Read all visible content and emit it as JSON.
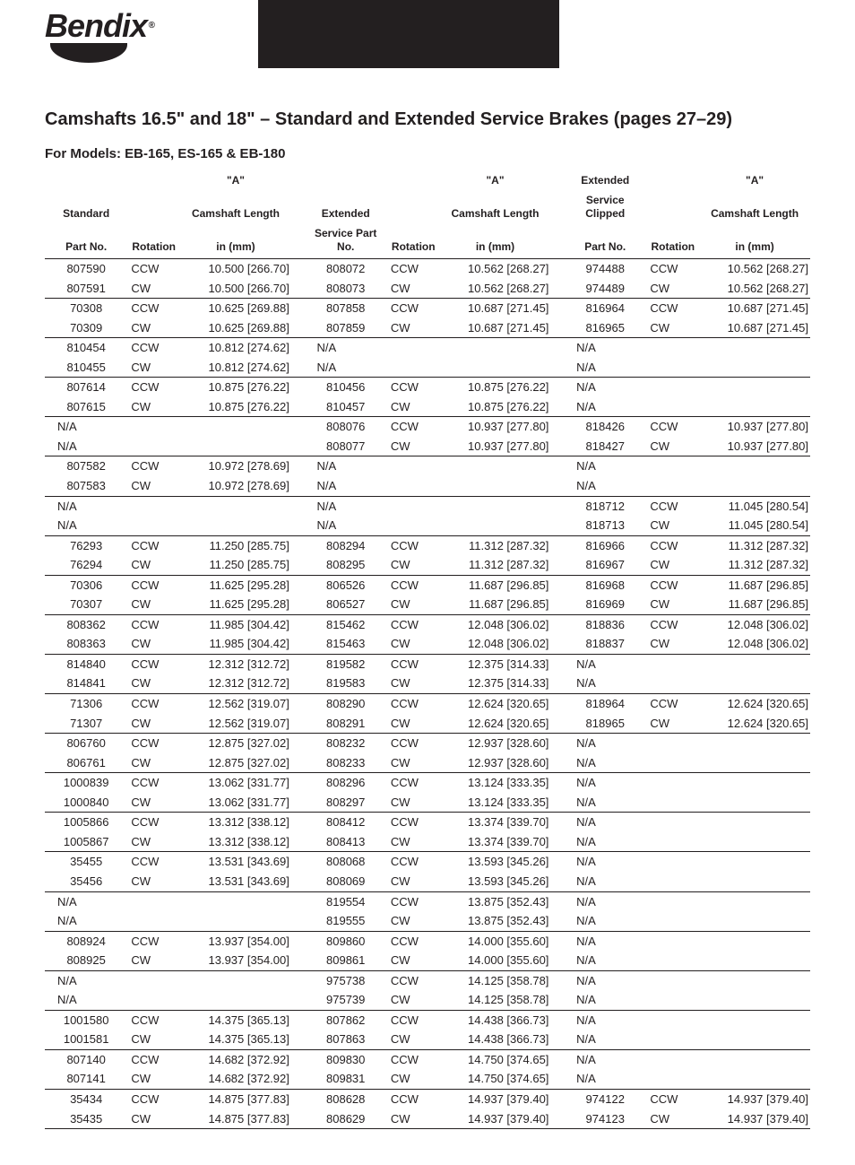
{
  "logo": {
    "text": "Bendix",
    "registered": "®"
  },
  "title": "Camshafts 16.5\" and 18\" – Standard and Extended Service Brakes (pages 27–29)",
  "subtitle": "For Models: EB-165, ES-165 & EB-180",
  "columns": {
    "std_part": [
      "Standard",
      "Part No."
    ],
    "rot": [
      "",
      "Rotation"
    ],
    "len": [
      "\"A\"",
      "Camshaft Length",
      "in (mm)"
    ],
    "ext_part": [
      "Extended",
      "Service Part No."
    ],
    "esc_part": [
      "Extended",
      "Service Clipped",
      "Part No."
    ]
  },
  "groups": [
    [
      {
        "s": "807590",
        "sr": "CCW",
        "sl": "10.500 [266.70]",
        "e": "808072",
        "er": "CCW",
        "el": "10.562 [268.27]",
        "c": "974488",
        "cr": "CCW",
        "cl": "10.562 [268.27]"
      },
      {
        "s": "807591",
        "sr": "CW",
        "sl": "10.500 [266.70]",
        "e": "808073",
        "er": "CW",
        "el": "10.562 [268.27]",
        "c": "974489",
        "cr": "CW",
        "cl": "10.562 [268.27]"
      }
    ],
    [
      {
        "s": "70308",
        "sr": "CCW",
        "sl": "10.625 [269.88]",
        "e": "807858",
        "er": "CCW",
        "el": "10.687 [271.45]",
        "c": "816964",
        "cr": "CCW",
        "cl": "10.687 [271.45]"
      },
      {
        "s": "70309",
        "sr": "CW",
        "sl": "10.625 [269.88]",
        "e": "807859",
        "er": "CW",
        "el": "10.687 [271.45]",
        "c": "816965",
        "cr": "CW",
        "cl": "10.687 [271.45]"
      }
    ],
    [
      {
        "s": "810454",
        "sr": "CCW",
        "sl": "10.812 [274.62]",
        "e": "N/A",
        "er": "",
        "el": "",
        "c": "N/A",
        "cr": "",
        "cl": ""
      },
      {
        "s": "810455",
        "sr": "CW",
        "sl": "10.812 [274.62]",
        "e": "N/A",
        "er": "",
        "el": "",
        "c": "N/A",
        "cr": "",
        "cl": ""
      }
    ],
    [
      {
        "s": "807614",
        "sr": "CCW",
        "sl": "10.875 [276.22]",
        "e": "810456",
        "er": "CCW",
        "el": "10.875 [276.22]",
        "c": "N/A",
        "cr": "",
        "cl": ""
      },
      {
        "s": "807615",
        "sr": "CW",
        "sl": "10.875 [276.22]",
        "e": "810457",
        "er": "CW",
        "el": "10.875 [276.22]",
        "c": "N/A",
        "cr": "",
        "cl": ""
      }
    ],
    [
      {
        "s": "N/A",
        "sr": "",
        "sl": "",
        "e": "808076",
        "er": "CCW",
        "el": "10.937 [277.80]",
        "c": "818426",
        "cr": "CCW",
        "cl": "10.937 [277.80]"
      },
      {
        "s": "N/A",
        "sr": "",
        "sl": "",
        "e": "808077",
        "er": "CW",
        "el": "10.937 [277.80]",
        "c": "818427",
        "cr": "CW",
        "cl": "10.937 [277.80]"
      }
    ],
    [
      {
        "s": "807582",
        "sr": "CCW",
        "sl": "10.972 [278.69]",
        "e": "N/A",
        "er": "",
        "el": "",
        "c": "N/A",
        "cr": "",
        "cl": ""
      },
      {
        "s": "807583",
        "sr": "CW",
        "sl": "10.972 [278.69]",
        "e": "N/A",
        "er": "",
        "el": "",
        "c": "N/A",
        "cr": "",
        "cl": ""
      }
    ],
    [
      {
        "s": "N/A",
        "sr": "",
        "sl": "",
        "e": "N/A",
        "er": "",
        "el": "",
        "c": "818712",
        "cr": "CCW",
        "cl": "11.045 [280.54]"
      },
      {
        "s": "N/A",
        "sr": "",
        "sl": "",
        "e": "N/A",
        "er": "",
        "el": "",
        "c": "818713",
        "cr": "CW",
        "cl": "11.045 [280.54]"
      }
    ],
    [
      {
        "s": "76293",
        "sr": "CCW",
        "sl": "11.250 [285.75]",
        "e": "808294",
        "er": "CCW",
        "el": "11.312 [287.32]",
        "c": "816966",
        "cr": "CCW",
        "cl": "11.312 [287.32]"
      },
      {
        "s": "76294",
        "sr": "CW",
        "sl": "11.250 [285.75]",
        "e": "808295",
        "er": "CW",
        "el": "11.312 [287.32]",
        "c": "816967",
        "cr": "CW",
        "cl": "11.312 [287.32]"
      }
    ],
    [
      {
        "s": "70306",
        "sr": "CCW",
        "sl": "11.625 [295.28]",
        "e": "806526",
        "er": "CCW",
        "el": "11.687 [296.85]",
        "c": "816968",
        "cr": "CCW",
        "cl": "11.687 [296.85]"
      },
      {
        "s": "70307",
        "sr": "CW",
        "sl": "11.625 [295.28]",
        "e": "806527",
        "er": "CW",
        "el": "11.687 [296.85]",
        "c": "816969",
        "cr": "CW",
        "cl": "11.687 [296.85]"
      }
    ],
    [
      {
        "s": "808362",
        "sr": "CCW",
        "sl": "11.985 [304.42]",
        "e": "815462",
        "er": "CCW",
        "el": "12.048 [306.02]",
        "c": "818836",
        "cr": "CCW",
        "cl": "12.048 [306.02]"
      },
      {
        "s": "808363",
        "sr": "CW",
        "sl": "11.985 [304.42]",
        "e": "815463",
        "er": "CW",
        "el": "12.048 [306.02]",
        "c": "818837",
        "cr": "CW",
        "cl": "12.048 [306.02]"
      }
    ],
    [
      {
        "s": "814840",
        "sr": "CCW",
        "sl": "12.312 [312.72]",
        "e": "819582",
        "er": "CCW",
        "el": "12.375 [314.33]",
        "c": "N/A",
        "cr": "",
        "cl": ""
      },
      {
        "s": "814841",
        "sr": "CW",
        "sl": "12.312 [312.72]",
        "e": "819583",
        "er": "CW",
        "el": "12.375 [314.33]",
        "c": "N/A",
        "cr": "",
        "cl": ""
      }
    ],
    [
      {
        "s": "71306",
        "sr": "CCW",
        "sl": "12.562 [319.07]",
        "e": "808290",
        "er": "CCW",
        "el": "12.624 [320.65]",
        "c": "818964",
        "cr": "CCW",
        "cl": "12.624 [320.65]"
      },
      {
        "s": "71307",
        "sr": "CW",
        "sl": "12.562 [319.07]",
        "e": "808291",
        "er": "CW",
        "el": "12.624 [320.65]",
        "c": "818965",
        "cr": "CW",
        "cl": "12.624 [320.65]"
      }
    ],
    [
      {
        "s": "806760",
        "sr": "CCW",
        "sl": "12.875 [327.02]",
        "e": "808232",
        "er": "CCW",
        "el": "12.937 [328.60]",
        "c": "N/A",
        "cr": "",
        "cl": ""
      },
      {
        "s": "806761",
        "sr": "CW",
        "sl": "12.875 [327.02]",
        "e": "808233",
        "er": "CW",
        "el": "12.937 [328.60]",
        "c": "N/A",
        "cr": "",
        "cl": ""
      }
    ],
    [
      {
        "s": "1000839",
        "sr": "CCW",
        "sl": "13.062 [331.77]",
        "e": "808296",
        "er": "CCW",
        "el": "13.124 [333.35]",
        "c": "N/A",
        "cr": "",
        "cl": ""
      },
      {
        "s": "1000840",
        "sr": "CW",
        "sl": "13.062 [331.77]",
        "e": "808297",
        "er": "CW",
        "el": "13.124 [333.35]",
        "c": "N/A",
        "cr": "",
        "cl": ""
      }
    ],
    [
      {
        "s": "1005866",
        "sr": "CCW",
        "sl": "13.312 [338.12]",
        "e": "808412",
        "er": "CCW",
        "el": "13.374 [339.70]",
        "c": "N/A",
        "cr": "",
        "cl": ""
      },
      {
        "s": "1005867",
        "sr": "CW",
        "sl": "13.312 [338.12]",
        "e": "808413",
        "er": "CW",
        "el": "13.374 [339.70]",
        "c": "N/A",
        "cr": "",
        "cl": ""
      }
    ],
    [
      {
        "s": "35455",
        "sr": "CCW",
        "sl": "13.531 [343.69]",
        "e": "808068",
        "er": "CCW",
        "el": "13.593 [345.26]",
        "c": "N/A",
        "cr": "",
        "cl": ""
      },
      {
        "s": "35456",
        "sr": "CW",
        "sl": "13.531 [343.69]",
        "e": "808069",
        "er": "CW",
        "el": "13.593 [345.26]",
        "c": "N/A",
        "cr": "",
        "cl": ""
      }
    ],
    [
      {
        "s": "N/A",
        "sr": "",
        "sl": "",
        "e": "819554",
        "er": "CCW",
        "el": "13.875 [352.43]",
        "c": "N/A",
        "cr": "",
        "cl": ""
      },
      {
        "s": "N/A",
        "sr": "",
        "sl": "",
        "e": "819555",
        "er": "CW",
        "el": "13.875 [352.43]",
        "c": "N/A",
        "cr": "",
        "cl": ""
      }
    ],
    [
      {
        "s": "808924",
        "sr": "CCW",
        "sl": "13.937 [354.00]",
        "e": "809860",
        "er": "CCW",
        "el": "14.000 [355.60]",
        "c": "N/A",
        "cr": "",
        "cl": ""
      },
      {
        "s": "808925",
        "sr": "CW",
        "sl": "13.937 [354.00]",
        "e": "809861",
        "er": "CW",
        "el": "14.000 [355.60]",
        "c": "N/A",
        "cr": "",
        "cl": ""
      }
    ],
    [
      {
        "s": "N/A",
        "sr": "",
        "sl": "",
        "e": "975738",
        "er": "CCW",
        "el": "14.125 [358.78]",
        "c": "N/A",
        "cr": "",
        "cl": ""
      },
      {
        "s": "N/A",
        "sr": "",
        "sl": "",
        "e": "975739",
        "er": "CW",
        "el": "14.125 [358.78]",
        "c": "N/A",
        "cr": "",
        "cl": ""
      }
    ],
    [
      {
        "s": "1001580",
        "sr": "CCW",
        "sl": "14.375 [365.13]",
        "e": "807862",
        "er": "CCW",
        "el": "14.438 [366.73]",
        "c": "N/A",
        "cr": "",
        "cl": ""
      },
      {
        "s": "1001581",
        "sr": "CW",
        "sl": "14.375 [365.13]",
        "e": "807863",
        "er": "CW",
        "el": "14.438 [366.73]",
        "c": "N/A",
        "cr": "",
        "cl": ""
      }
    ],
    [
      {
        "s": "807140",
        "sr": "CCW",
        "sl": "14.682 [372.92]",
        "e": "809830",
        "er": "CCW",
        "el": "14.750 [374.65]",
        "c": "N/A",
        "cr": "",
        "cl": ""
      },
      {
        "s": "807141",
        "sr": "CW",
        "sl": "14.682 [372.92]",
        "e": "809831",
        "er": "CW",
        "el": "14.750 [374.65]",
        "c": "N/A",
        "cr": "",
        "cl": ""
      }
    ],
    [
      {
        "s": "35434",
        "sr": "CCW",
        "sl": "14.875 [377.83]",
        "e": "808628",
        "er": "CCW",
        "el": "14.937 [379.40]",
        "c": "974122",
        "cr": "CCW",
        "cl": "14.937 [379.40]"
      },
      {
        "s": "35435",
        "sr": "CW",
        "sl": "14.875 [377.83]",
        "e": "808629",
        "er": "CW",
        "el": "14.937 [379.40]",
        "c": "974123",
        "cr": "CW",
        "cl": "14.937 [379.40]"
      }
    ]
  ]
}
